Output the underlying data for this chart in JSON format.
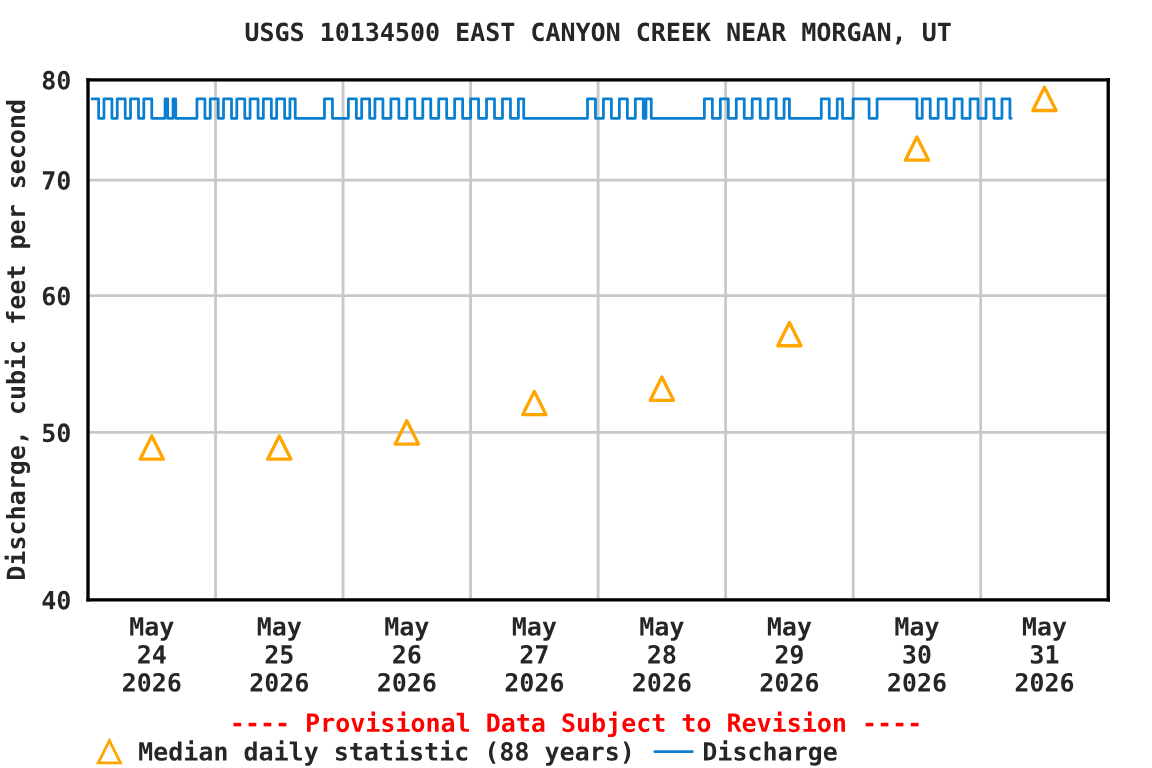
{
  "chart_data": {
    "type": "scatter",
    "title": "USGS 10134500 EAST CANYON CREEK NEAR MORGAN, UT",
    "ylabel": "Discharge, cubic feet per second",
    "log": "y",
    "ylim": [
      40,
      80
    ],
    "yticks": [
      40,
      50,
      60,
      70,
      80
    ],
    "xlim": [
      "2026-05-24T00:00",
      "2026-06-01T00:00"
    ],
    "xticks": [
      {
        "value": "2026-05-24T12:00",
        "label": "May\n24\n2026"
      },
      {
        "value": "2026-05-25T00:00",
        "label": null
      },
      {
        "value": "2026-05-25T12:00",
        "label": "May\n25\n2026"
      },
      {
        "value": "2026-05-26T00:00",
        "label": null
      },
      {
        "value": "2026-05-26T12:00",
        "label": "May\n26\n2026"
      },
      {
        "value": "2026-05-27T00:00",
        "label": null
      },
      {
        "value": "2026-05-27T12:00",
        "label": "May\n27\n2026"
      },
      {
        "value": "2026-05-28T00:00",
        "label": null
      },
      {
        "value": "2026-05-28T12:00",
        "label": "May\n28\n2026"
      },
      {
        "value": "2026-05-29T00:00",
        "label": null
      },
      {
        "value": "2026-05-29T12:00",
        "label": "May\n29\n2026"
      },
      {
        "value": "2026-05-30T00:00",
        "label": null
      },
      {
        "value": "2026-05-30T12:00",
        "label": "May\n30\n2026"
      },
      {
        "value": "2026-05-31T00:00",
        "label": null
      },
      {
        "value": "2026-05-31T12:00",
        "label": "May\n31\n2026"
      }
    ],
    "grid": true,
    "legend": "bottom",
    "annotations": [
      "---- Provisional Data Subject to Revision ----"
    ],
    "series": [
      {
        "name": "Median daily statistic (88 years)",
        "marker": "triangle",
        "color": "#ffa500",
        "x": [
          "2026-05-24T12:00",
          "2026-05-25T12:00",
          "2026-05-26T12:00",
          "2026-05-27T12:00",
          "2026-05-28T12:00",
          "2026-05-29T12:00",
          "2026-05-30T12:00",
          "2026-05-31T12:00"
        ],
        "values": [
          49,
          49,
          50,
          52,
          53,
          57,
          73,
          78
        ]
      },
      {
        "name": "Discharge",
        "type": "step",
        "marker": "none",
        "color": "#0a7fd0",
        "x": [
          "2026-05-24T00:45",
          "2026-05-24T02:00",
          "2026-05-24T03:00",
          "2026-05-24T04:30",
          "2026-05-24T05:30",
          "2026-05-24T07:00",
          "2026-05-24T08:00",
          "2026-05-24T09:30",
          "2026-05-24T10:30",
          "2026-05-24T12:00",
          "2026-05-24T14:30",
          "2026-05-24T15:00",
          "2026-05-24T16:00",
          "2026-05-24T16:30",
          "2026-05-24T20:30",
          "2026-05-24T22:00",
          "2026-05-24T23:00",
          "2026-05-25T00:30",
          "2026-05-25T01:30",
          "2026-05-25T03:00",
          "2026-05-25T04:00",
          "2026-05-25T05:30",
          "2026-05-25T06:30",
          "2026-05-25T08:00",
          "2026-05-25T09:00",
          "2026-05-25T10:30",
          "2026-05-25T11:30",
          "2026-05-25T13:00",
          "2026-05-25T14:00",
          "2026-05-25T15:00",
          "2026-05-25T20:30",
          "2026-05-25T22:00",
          "2026-05-26T01:00",
          "2026-05-26T02:30",
          "2026-05-26T03:30",
          "2026-05-26T05:00",
          "2026-05-26T06:00",
          "2026-05-26T07:30",
          "2026-05-26T09:00",
          "2026-05-26T10:30",
          "2026-05-26T12:00",
          "2026-05-26T13:30",
          "2026-05-26T15:00",
          "2026-05-26T16:30",
          "2026-05-26T18:00",
          "2026-05-26T19:30",
          "2026-05-26T21:00",
          "2026-05-26T22:30",
          "2026-05-27T00:00",
          "2026-05-27T01:30",
          "2026-05-27T03:00",
          "2026-05-27T04:30",
          "2026-05-27T06:00",
          "2026-05-27T07:30",
          "2026-05-27T09:00",
          "2026-05-27T10:00",
          "2026-05-27T22:00",
          "2026-05-27T23:30",
          "2026-05-28T01:00",
          "2026-05-28T02:30",
          "2026-05-28T04:00",
          "2026-05-28T05:30",
          "2026-05-28T07:00",
          "2026-05-28T08:30",
          "2026-05-28T09:00",
          "2026-05-28T10:00",
          "2026-05-28T20:00",
          "2026-05-28T21:30",
          "2026-05-28T23:00",
          "2026-05-29T00:30",
          "2026-05-29T02:00",
          "2026-05-29T03:30",
          "2026-05-29T05:00",
          "2026-05-29T06:30",
          "2026-05-29T08:00",
          "2026-05-29T09:30",
          "2026-05-29T11:00",
          "2026-05-29T12:00",
          "2026-05-29T18:00",
          "2026-05-29T19:30",
          "2026-05-29T21:00",
          "2026-05-29T22:00",
          "2026-05-30T00:00",
          "2026-05-30T03:00",
          "2026-05-30T04:30",
          "2026-05-30T12:00",
          "2026-05-30T13:00",
          "2026-05-30T14:30",
          "2026-05-30T16:00",
          "2026-05-30T17:30",
          "2026-05-30T19:00",
          "2026-05-30T20:30",
          "2026-05-30T22:00",
          "2026-05-30T23:30",
          "2026-05-31T01:00",
          "2026-05-31T02:30",
          "2026-05-31T04:00",
          "2026-05-31T05:30",
          "2026-05-31T05:45"
        ],
        "values": [
          78,
          76,
          78,
          76,
          78,
          76,
          78,
          76,
          78,
          76,
          78,
          76,
          78,
          76,
          78,
          76,
          78,
          76,
          78,
          76,
          78,
          76,
          78,
          76,
          78,
          76,
          78,
          76,
          78,
          76,
          78,
          76,
          78,
          76,
          78,
          76,
          78,
          76,
          78,
          76,
          78,
          76,
          78,
          76,
          78,
          76,
          78,
          76,
          78,
          76,
          78,
          76,
          78,
          76,
          78,
          76,
          78,
          76,
          78,
          76,
          78,
          76,
          78,
          76,
          78,
          76,
          78,
          76,
          78,
          76,
          78,
          76,
          78,
          76,
          78,
          76,
          78,
          76,
          78,
          76,
          78,
          76,
          78,
          76,
          78,
          76,
          78,
          76,
          78,
          76,
          78,
          76,
          78,
          76,
          78,
          76,
          78,
          76,
          76
        ]
      }
    ]
  }
}
